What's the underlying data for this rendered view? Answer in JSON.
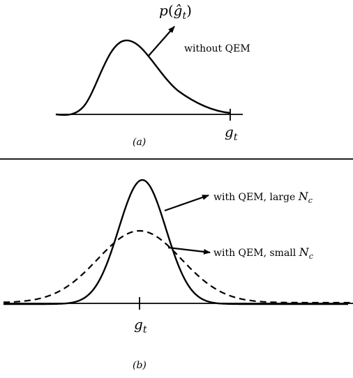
{
  "panel_a": {
    "dist_label": {
      "p": "p",
      "open": "(",
      "g": "ĝ",
      "sub": "t",
      "close": ")"
    },
    "curve_label": "without QEM",
    "tick_label": {
      "g": "g",
      "sub": "t"
    },
    "caption": "(a)"
  },
  "panel_b": {
    "large_label": {
      "text": "with QEM, large ",
      "N": "N",
      "sub": "c"
    },
    "small_label": {
      "text": "with QEM, small ",
      "N": "N",
      "sub": "c"
    },
    "tick_label": {
      "g": "g",
      "sub": "t"
    },
    "caption": "(b)"
  }
}
